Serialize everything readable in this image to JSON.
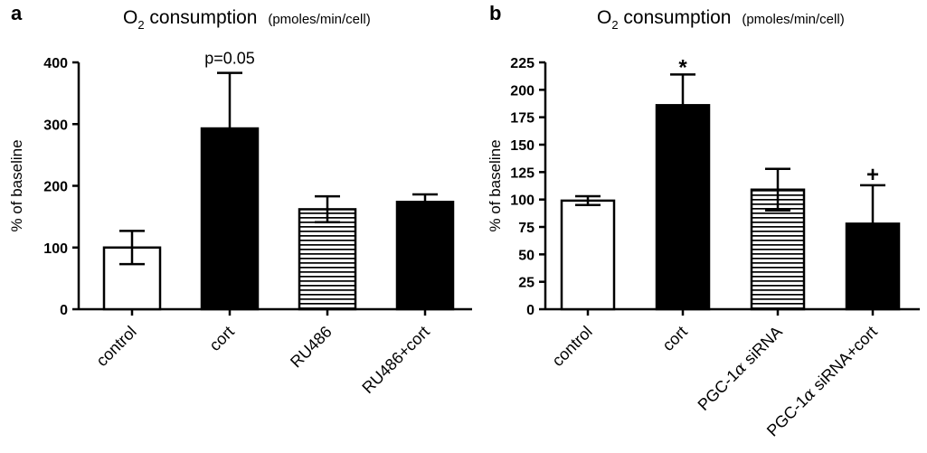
{
  "chart_data": [
    {
      "panel": "a",
      "type": "bar",
      "title_main": "O",
      "title_sub": "2",
      "title_rest": " consumption",
      "title_unit": "(pmoles/min/cell)",
      "ylabel": "% of baseline",
      "xlabel": "",
      "ylim": [
        0,
        400
      ],
      "yticks": [
        0,
        100,
        200,
        300,
        400
      ],
      "categories": [
        "control",
        "cort",
        "RU486",
        "RU486+cort"
      ],
      "category_display": [
        {
          "text": "control"
        },
        {
          "text": "cort"
        },
        {
          "text": "RU486"
        },
        {
          "text": "RU486+cort"
        }
      ],
      "values": [
        100,
        293,
        162,
        174
      ],
      "errors": [
        27,
        90,
        21,
        12
      ],
      "fills": [
        "white",
        "black",
        "hstripe",
        "black"
      ],
      "annotations": [
        {
          "category_index": 1,
          "text": "p=0.05",
          "kind": "text"
        }
      ]
    },
    {
      "panel": "b",
      "type": "bar",
      "title_main": "O",
      "title_sub": "2",
      "title_rest": " consumption",
      "title_unit": "(pmoles/min/cell)",
      "ylabel": "% of baseline",
      "xlabel": "",
      "ylim": [
        0,
        225
      ],
      "yticks": [
        0,
        25,
        50,
        75,
        100,
        125,
        150,
        175,
        200,
        225
      ],
      "categories": [
        "control",
        "cort",
        "PGC-1α siRNA",
        "PGC-1α siRNA+cort"
      ],
      "category_display": [
        {
          "text": "control"
        },
        {
          "text": "cort"
        },
        {
          "text": "PGC-1",
          "greek": "α",
          "rest": " siRNA"
        },
        {
          "text": "PGC-1",
          "greek": "α",
          "rest": " siRNA+cort"
        }
      ],
      "values": [
        99,
        186,
        109,
        78
      ],
      "errors": [
        4,
        28,
        19,
        35
      ],
      "fills": [
        "white",
        "black",
        "hstripe",
        "black"
      ],
      "annotations": [
        {
          "category_index": 1,
          "text": "*",
          "kind": "symbol"
        },
        {
          "category_index": 3,
          "text": "+",
          "kind": "symbol"
        }
      ]
    }
  ]
}
